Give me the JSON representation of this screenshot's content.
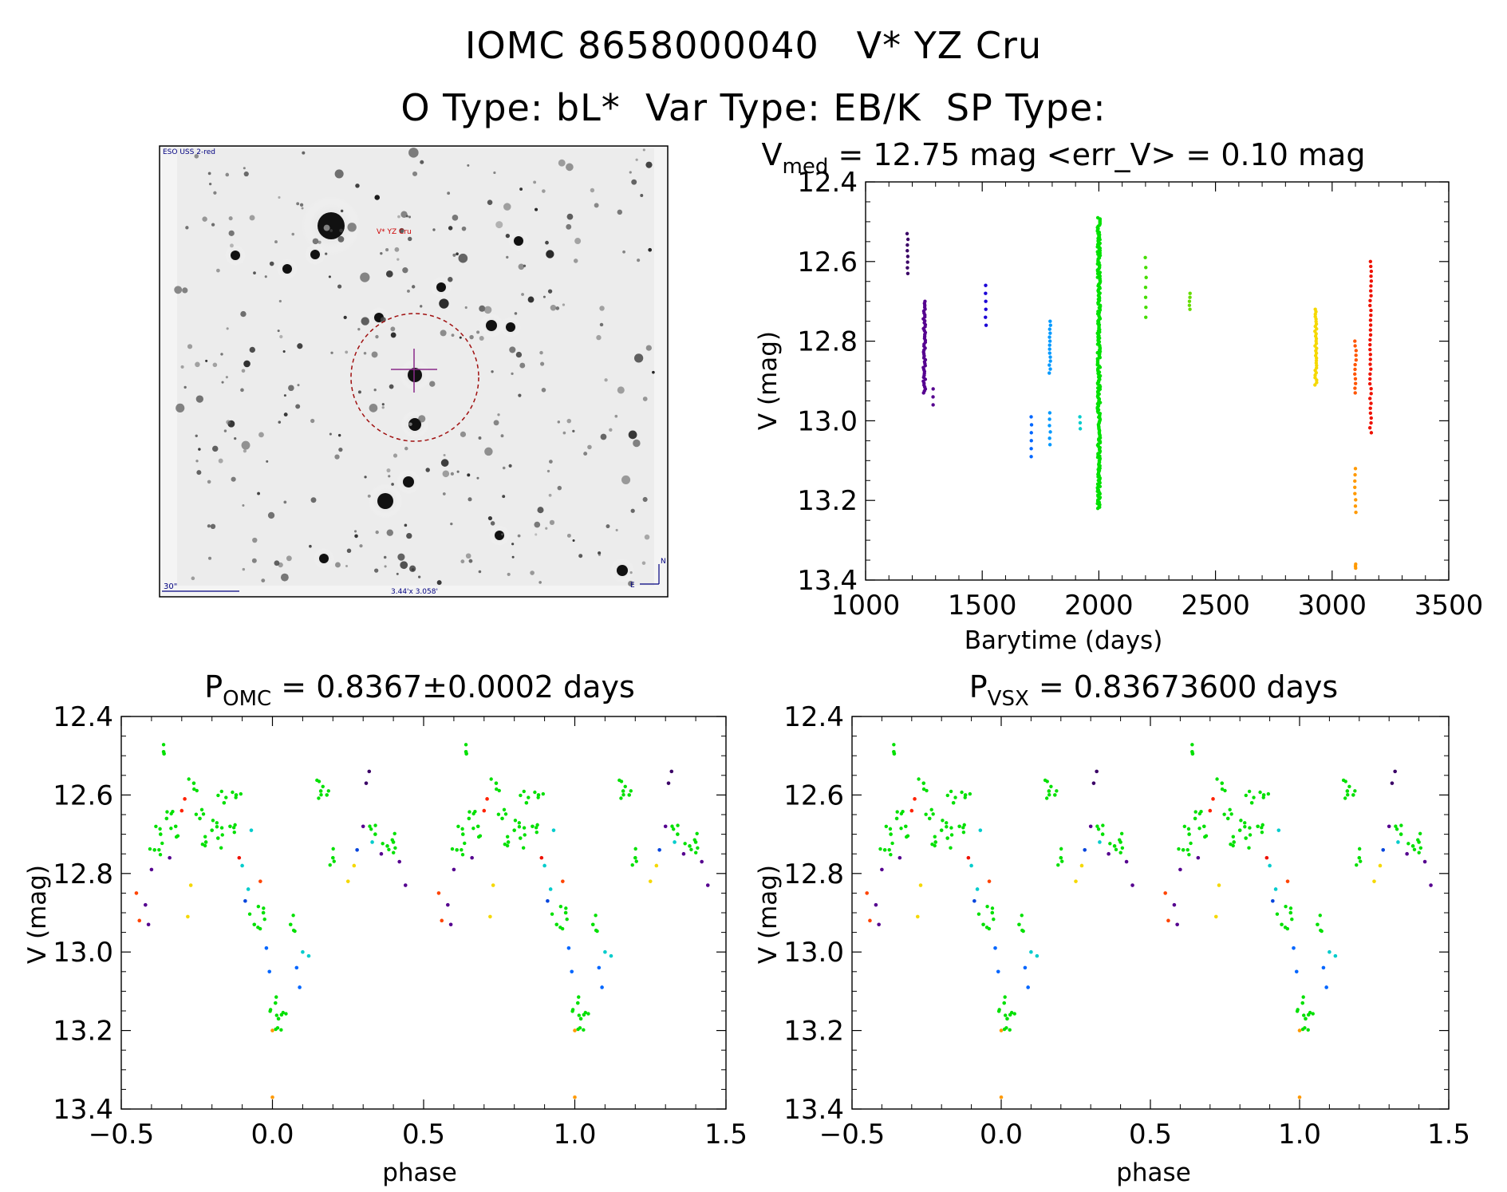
{
  "header": {
    "line1": "IOMC 8658000040   V* YZ Cru",
    "line2": "O Type: bL*  Var Type: EB/K  SP Type:"
  },
  "image": {
    "survey_label": "ESO USS 2-red",
    "object_label": "V* YZ Cru",
    "scale_label": "30\"",
    "size_label": "3.44'x 3.058'",
    "north_label": "N",
    "east_label": "E"
  },
  "plots": {
    "lightcurve": {
      "title_main": "V",
      "title_sub": "med",
      "title_rest": " = 12.75 mag <err_V> = 0.10 mag",
      "xlabel": "Barytime (days)",
      "ylabel": "V (mag)"
    },
    "phase_omc": {
      "title_main": "P",
      "title_sub": "OMC",
      "title_rest": " = 0.8367±0.0002 days",
      "xlabel": "phase",
      "ylabel": "V (mag)"
    },
    "phase_vsx": {
      "title_main": "P",
      "title_sub": "VSX",
      "title_rest": " = 0.83673600 days",
      "xlabel": "phase",
      "ylabel": "V (mag)"
    }
  },
  "chart_data": [
    {
      "type": "scatter",
      "title": "V_med = 12.75 mag <err_V> = 0.10 mag",
      "xlabel": "Barytime (days)",
      "ylabel": "V (mag)",
      "xlim": [
        1000,
        3500
      ],
      "ylim": [
        13.4,
        12.4
      ],
      "x_ticks": [
        1000,
        1500,
        2000,
        2500,
        3000,
        3500
      ],
      "y_ticks": [
        12.4,
        12.6,
        12.8,
        13.0,
        13.2,
        13.4
      ],
      "groups": [
        {
          "name": "g1",
          "color": "#3a0066",
          "x_center": 1180,
          "x_spread": 2,
          "v_min": 12.53,
          "v_max": 12.63,
          "count": 8
        },
        {
          "name": "g2",
          "color": "#55008f",
          "x_center": 1252,
          "x_spread": 5,
          "v_min": 12.7,
          "v_max": 12.93,
          "count": 48
        },
        {
          "name": "g3",
          "color": "#55008f",
          "x_center": 1290,
          "x_spread": 2,
          "v_min": 12.92,
          "v_max": 12.96,
          "count": 3
        },
        {
          "name": "g4",
          "color": "#1a00d6",
          "x_center": 1515,
          "x_spread": 2,
          "v_min": 12.66,
          "v_max": 12.76,
          "count": 6
        },
        {
          "name": "g5",
          "color": "#0066ff",
          "x_center": 1710,
          "x_spread": 2,
          "v_min": 12.99,
          "v_max": 13.09,
          "count": 6
        },
        {
          "name": "g6",
          "color": "#0099ff",
          "x_center": 1790,
          "x_spread": 3,
          "v_min": 12.75,
          "v_max": 12.88,
          "count": 14
        },
        {
          "name": "g7",
          "color": "#0099ff",
          "x_center": 1790,
          "x_spread": 2,
          "v_min": 12.98,
          "v_max": 13.06,
          "count": 6
        },
        {
          "name": "g8",
          "color": "#00cccc",
          "x_center": 1920,
          "x_spread": 2,
          "v_min": 12.99,
          "v_max": 13.02,
          "count": 3
        },
        {
          "name": "g9",
          "color": "#00e000",
          "x_center": 2000,
          "x_spread": 6,
          "v_min": 12.49,
          "v_max": 13.22,
          "count": 240
        },
        {
          "name": "g10",
          "color": "#44dd00",
          "x_center": 2200,
          "x_spread": 3,
          "v_min": 12.59,
          "v_max": 12.74,
          "count": 7
        },
        {
          "name": "g11",
          "color": "#66dd00",
          "x_center": 2390,
          "x_spread": 2,
          "v_min": 12.68,
          "v_max": 12.72,
          "count": 5
        },
        {
          "name": "g12",
          "color": "#f5d800",
          "x_center": 2930,
          "x_spread": 4,
          "v_min": 12.72,
          "v_max": 12.91,
          "count": 32
        },
        {
          "name": "g13",
          "color": "#ff5500",
          "x_center": 3100,
          "x_spread": 3,
          "v_min": 12.8,
          "v_max": 12.93,
          "count": 12
        },
        {
          "name": "g14",
          "color": "#ff9900",
          "x_center": 3100,
          "x_spread": 3,
          "v_min": 13.12,
          "v_max": 13.23,
          "count": 8
        },
        {
          "name": "g15",
          "color": "#ff9900",
          "x_center": 3100,
          "x_spread": 2,
          "v_min": 13.36,
          "v_max": 13.37,
          "count": 3
        },
        {
          "name": "g16",
          "color": "#ee1100",
          "x_center": 3165,
          "x_spread": 3,
          "v_min": 12.6,
          "v_max": 13.03,
          "count": 36
        }
      ]
    },
    {
      "type": "scatter",
      "title": "P_OMC = 0.8367±0.0002 days",
      "xlabel": "phase",
      "ylabel": "V (mag)",
      "period_days": 0.8367,
      "xlim": [
        -0.5,
        1.5
      ],
      "ylim": [
        13.4,
        12.4
      ],
      "x_ticks": [
        -0.5,
        0.0,
        0.5,
        1.0,
        1.5
      ],
      "x_tick_labels": [
        "−0.5",
        "0.0",
        "0.5",
        "1.0",
        "1.5"
      ],
      "y_ticks": [
        12.4,
        12.6,
        12.8,
        13.0,
        13.2,
        13.4
      ],
      "points": [
        {
          "phase": -0.45,
          "v": 12.85,
          "color": "#ff4400"
        },
        {
          "phase": -0.44,
          "v": 12.92,
          "color": "#ff4400"
        },
        {
          "phase": -0.42,
          "v": 12.88,
          "color": "#55008f"
        },
        {
          "phase": -0.41,
          "v": 12.93,
          "color": "#55008f"
        },
        {
          "phase": -0.4,
          "v": 12.79,
          "color": "#55008f"
        },
        {
          "phase": -0.39,
          "v": 12.74,
          "color": "#00e000"
        },
        {
          "phase": -0.37,
          "v": 12.7,
          "color": "#00e000"
        },
        {
          "phase": -0.36,
          "v": 12.49,
          "color": "#00e000"
        },
        {
          "phase": -0.35,
          "v": 12.66,
          "color": "#00e000"
        },
        {
          "phase": -0.34,
          "v": 12.76,
          "color": "#55008f"
        },
        {
          "phase": -0.32,
          "v": 12.68,
          "color": "#00e000"
        },
        {
          "phase": -0.3,
          "v": 12.64,
          "color": "#ff2200"
        },
        {
          "phase": -0.29,
          "v": 12.61,
          "color": "#ff2200"
        },
        {
          "phase": -0.28,
          "v": 12.91,
          "color": "#f5d800"
        },
        {
          "phase": -0.27,
          "v": 12.83,
          "color": "#f5d800"
        },
        {
          "phase": -0.26,
          "v": 12.57,
          "color": "#00e000"
        },
        {
          "phase": -0.24,
          "v": 12.66,
          "color": "#00e000"
        },
        {
          "phase": -0.22,
          "v": 12.72,
          "color": "#00e000"
        },
        {
          "phase": -0.2,
          "v": 12.69,
          "color": "#00e000"
        },
        {
          "phase": -0.18,
          "v": 12.71,
          "color": "#00e000"
        },
        {
          "phase": -0.16,
          "v": 12.62,
          "color": "#00e000"
        },
        {
          "phase": -0.14,
          "v": 12.68,
          "color": "#00e000"
        },
        {
          "phase": -0.12,
          "v": 12.6,
          "color": "#00e000"
        },
        {
          "phase": -0.11,
          "v": 12.76,
          "color": "#ee1100"
        },
        {
          "phase": -0.1,
          "v": 12.78,
          "color": "#00cccc"
        },
        {
          "phase": -0.09,
          "v": 12.87,
          "color": "#0044dd"
        },
        {
          "phase": -0.08,
          "v": 12.84,
          "color": "#00cccc"
        },
        {
          "phase": -0.07,
          "v": 12.69,
          "color": "#00cccc"
        },
        {
          "phase": -0.06,
          "v": 12.93,
          "color": "#00e000"
        },
        {
          "phase": -0.04,
          "v": 12.82,
          "color": "#ff4400"
        },
        {
          "phase": -0.03,
          "v": 12.9,
          "color": "#00e000"
        },
        {
          "phase": -0.02,
          "v": 12.99,
          "color": "#0066ff"
        },
        {
          "phase": -0.01,
          "v": 13.05,
          "color": "#0066ff"
        },
        {
          "phase": 0.0,
          "v": 13.2,
          "color": "#ff9900"
        },
        {
          "phase": 0.0,
          "v": 13.37,
          "color": "#ff9900"
        },
        {
          "phase": 0.01,
          "v": 13.13,
          "color": "#00e000"
        },
        {
          "phase": 0.02,
          "v": 13.17,
          "color": "#00e000"
        },
        {
          "phase": 0.03,
          "v": 13.16,
          "color": "#00e000"
        },
        {
          "phase": 0.06,
          "v": 12.93,
          "color": "#00e000"
        },
        {
          "phase": 0.08,
          "v": 13.04,
          "color": "#0066ff"
        },
        {
          "phase": 0.09,
          "v": 13.09,
          "color": "#0066ff"
        },
        {
          "phase": 0.1,
          "v": 13.0,
          "color": "#00cccc"
        },
        {
          "phase": 0.12,
          "v": 13.01,
          "color": "#00cccc"
        },
        {
          "phase": 0.16,
          "v": 12.59,
          "color": "#00e000"
        },
        {
          "phase": 0.18,
          "v": 12.6,
          "color": "#00e000"
        },
        {
          "phase": 0.2,
          "v": 12.76,
          "color": "#00e000"
        },
        {
          "phase": 0.25,
          "v": 12.82,
          "color": "#f5d800"
        },
        {
          "phase": 0.27,
          "v": 12.78,
          "color": "#f5d800"
        },
        {
          "phase": 0.28,
          "v": 12.74,
          "color": "#0044dd"
        },
        {
          "phase": 0.3,
          "v": 12.68,
          "color": "#55008f"
        },
        {
          "phase": 0.31,
          "v": 12.57,
          "color": "#3a0066"
        },
        {
          "phase": 0.32,
          "v": 12.54,
          "color": "#3a0066"
        },
        {
          "phase": 0.33,
          "v": 12.72,
          "color": "#00cccc"
        },
        {
          "phase": 0.34,
          "v": 12.7,
          "color": "#00e000"
        },
        {
          "phase": 0.36,
          "v": 12.75,
          "color": "#55008f"
        },
        {
          "phase": 0.38,
          "v": 12.73,
          "color": "#00e000"
        },
        {
          "phase": 0.4,
          "v": 12.72,
          "color": "#00e000"
        },
        {
          "phase": 0.42,
          "v": 12.77,
          "color": "#55008f"
        },
        {
          "phase": 0.44,
          "v": 12.83,
          "color": "#55008f"
        }
      ]
    },
    {
      "type": "scatter",
      "title": "P_VSX = 0.83673600 days",
      "xlabel": "phase",
      "ylabel": "V (mag)",
      "period_days": 0.836736,
      "xlim": [
        -0.5,
        1.5
      ],
      "ylim": [
        13.4,
        12.4
      ],
      "x_ticks": [
        -0.5,
        0.0,
        0.5,
        1.0,
        1.5
      ],
      "x_tick_labels": [
        "−0.5",
        "0.0",
        "0.5",
        "1.0",
        "1.5"
      ],
      "y_ticks": [
        12.4,
        12.6,
        12.8,
        13.0,
        13.2,
        13.4
      ],
      "same_points_as": "phase_omc"
    }
  ]
}
